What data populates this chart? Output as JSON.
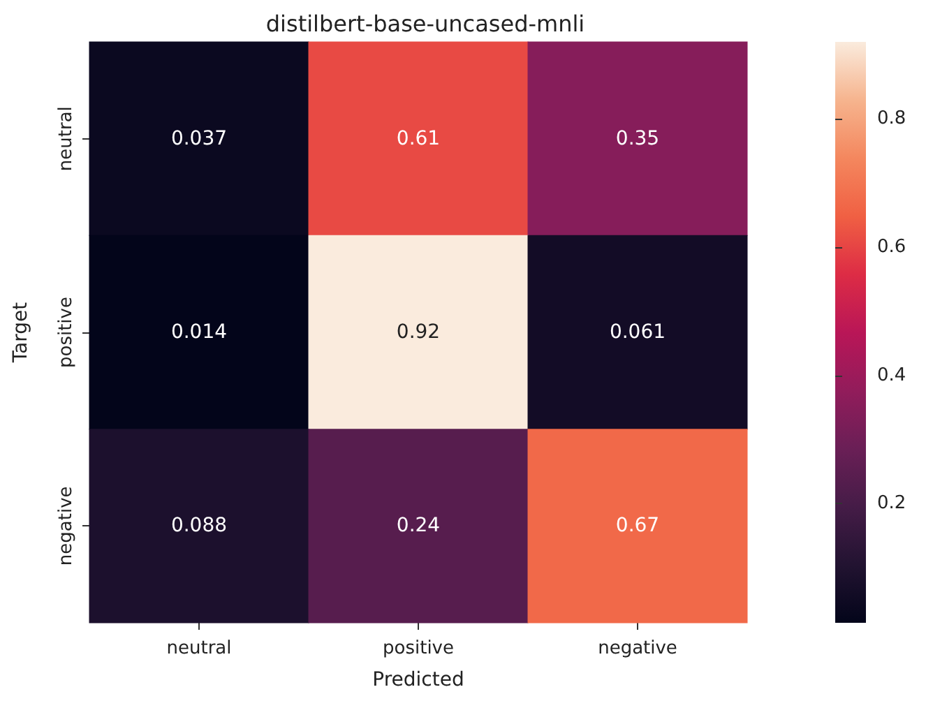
{
  "chart_data": {
    "type": "heatmap",
    "title": "distilbert-base-uncased-mnli",
    "xlabel": "Predicted",
    "ylabel": "Target",
    "categories": [
      "neutral",
      "positive",
      "negative"
    ],
    "y_categories": [
      "neutral",
      "positive",
      "negative"
    ],
    "cells": [
      [
        0.037,
        0.61,
        0.35
      ],
      [
        0.014,
        0.92,
        0.061
      ],
      [
        0.088,
        0.24,
        0.67
      ]
    ],
    "data_labels": true,
    "clim": [
      0.014,
      0.92
    ],
    "cticks": [
      0.2,
      0.4,
      0.6,
      0.8
    ]
  }
}
